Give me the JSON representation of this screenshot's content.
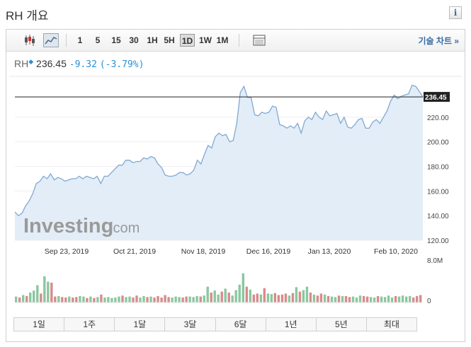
{
  "header": {
    "title": "RH 개요",
    "info_icon": "info-icon"
  },
  "toolbar": {
    "chart_type_icons": [
      "candlestick-icon",
      "line-chart-icon"
    ],
    "timeframes": [
      "1",
      "5",
      "15",
      "30",
      "1H",
      "5H",
      "1D",
      "1W",
      "1M"
    ],
    "active_timeframe": "1D",
    "table_icon": "data-table-icon",
    "tech_chart_label": "기술 차트 »"
  },
  "quote": {
    "symbol": "RH",
    "price": "236.45",
    "change": "-9.32",
    "change_pct": "(-3.79%)"
  },
  "watermark": {
    "brand": "Investing",
    "suffix": ".com"
  },
  "range_buttons": [
    "1일",
    "1주",
    "1달",
    "3달",
    "6달",
    "1년",
    "5년",
    "최대"
  ],
  "colors": {
    "line": "#7fa9d3",
    "area": "#e3edf7",
    "volume_up": "#8bc79f",
    "volume_down": "#d98b8b",
    "link": "#3a6ea5"
  },
  "chart_data": {
    "type": "area",
    "ylim": [
      120,
      252
    ],
    "y_ticks": [
      "120.00",
      "140.00",
      "160.00",
      "180.00",
      "200.00",
      "220.00"
    ],
    "x_tick_labels": [
      "Sep 23, 2019",
      "Oct 21, 2019",
      "Nov 18, 2019",
      "Dec 16, 2019",
      "Jan 13, 2020",
      "Feb 10, 2020"
    ],
    "last_price_label": "236.45",
    "last_price": 236.45,
    "y": [
      143,
      140,
      142,
      148,
      152,
      158,
      166,
      168,
      172,
      170,
      174,
      169,
      171,
      170,
      168,
      169,
      170,
      170,
      172,
      170,
      172,
      171,
      170,
      172,
      166,
      172,
      172,
      175,
      178,
      181,
      181,
      185,
      185,
      183,
      184,
      184,
      187,
      186,
      188,
      187,
      182,
      179,
      173,
      172,
      172,
      173,
      175,
      175,
      173,
      174,
      177,
      185,
      182,
      190,
      197,
      195,
      204,
      207,
      205,
      206,
      200,
      201,
      215,
      240,
      245,
      236,
      236,
      222,
      221,
      224,
      223,
      224,
      229,
      228,
      214,
      213,
      211,
      213,
      211,
      215,
      207,
      217,
      220,
      218,
      224,
      220,
      218,
      225,
      221,
      222,
      223,
      215,
      220,
      212,
      211,
      214,
      218,
      219,
      211,
      211,
      216,
      218,
      215,
      220,
      225,
      233,
      238,
      235,
      237,
      238,
      239,
      246,
      245,
      241,
      236.45
    ],
    "volume_scale_label": "8.0M",
    "volume_zero_label": "0",
    "volume_max_m": 8.0,
    "volume_m": [
      1.2,
      1.0,
      1.5,
      1.3,
      2.0,
      2.4,
      3.5,
      1.8,
      5.3,
      4.2,
      4.0,
      1.2,
      1.3,
      1.1,
      1.0,
      1.2,
      1.0,
      1.1,
      1.3,
      1.2,
      0.9,
      1.2,
      0.9,
      1.1,
      1.6,
      1.0,
      1.1,
      0.9,
      1.0,
      1.2,
      1.4,
      1.1,
      1.2,
      1.0,
      1.4,
      1.0,
      1.3,
      1.1,
      1.2,
      1.0,
      1.3,
      1.0,
      1.5,
      1.1,
      1.0,
      1.2,
      1.1,
      1.0,
      1.2,
      1.2,
      1.1,
      1.3,
      1.2,
      1.4,
      3.2,
      2.0,
      2.4,
      1.6,
      2.2,
      2.8,
      2.0,
      1.4,
      2.5,
      3.6,
      5.9,
      3.2,
      2.6,
      1.6,
      1.8,
      1.6,
      2.9,
      1.8,
      1.7,
      1.9,
      1.5,
      1.6,
      1.8,
      1.4,
      1.9,
      3.1,
      2.2,
      2.5,
      3.2,
      2.0,
      1.6,
      1.4,
      1.8,
      1.6,
      1.3,
      1.2,
      1.1,
      1.4,
      1.3,
      1.3,
      1.1,
      1.2,
      1.0,
      1.4,
      1.3,
      1.2,
      1.1,
      1.0,
      1.3,
      1.2,
      1.1,
      1.4,
      1.0,
      1.3,
      1.2,
      1.4,
      1.2,
      1.3,
      1.0,
      1.3,
      1.5
    ],
    "volume_dir": [
      1,
      0,
      1,
      0,
      1,
      1,
      1,
      0,
      1,
      1,
      0,
      0,
      1,
      0,
      0,
      1,
      0,
      0,
      1,
      1,
      0,
      1,
      0,
      1,
      0,
      1,
      1,
      1,
      1,
      1,
      0,
      1,
      1,
      0,
      0,
      1,
      1,
      0,
      1,
      0,
      0,
      0,
      0,
      0,
      1,
      1,
      1,
      0,
      0,
      1,
      1,
      1,
      0,
      1,
      1,
      0,
      1,
      1,
      0,
      1,
      0,
      1,
      1,
      1,
      1,
      0,
      1,
      0,
      0,
      1,
      0,
      1,
      1,
      0,
      0,
      0,
      0,
      1,
      0,
      1,
      0,
      1,
      1,
      0,
      1,
      0,
      0,
      1,
      0,
      1,
      1,
      0,
      1,
      0,
      0,
      1,
      1,
      1,
      0,
      0,
      1,
      1,
      0,
      1,
      1,
      1,
      1,
      0,
      1,
      1,
      1,
      1,
      0,
      0,
      0
    ]
  }
}
